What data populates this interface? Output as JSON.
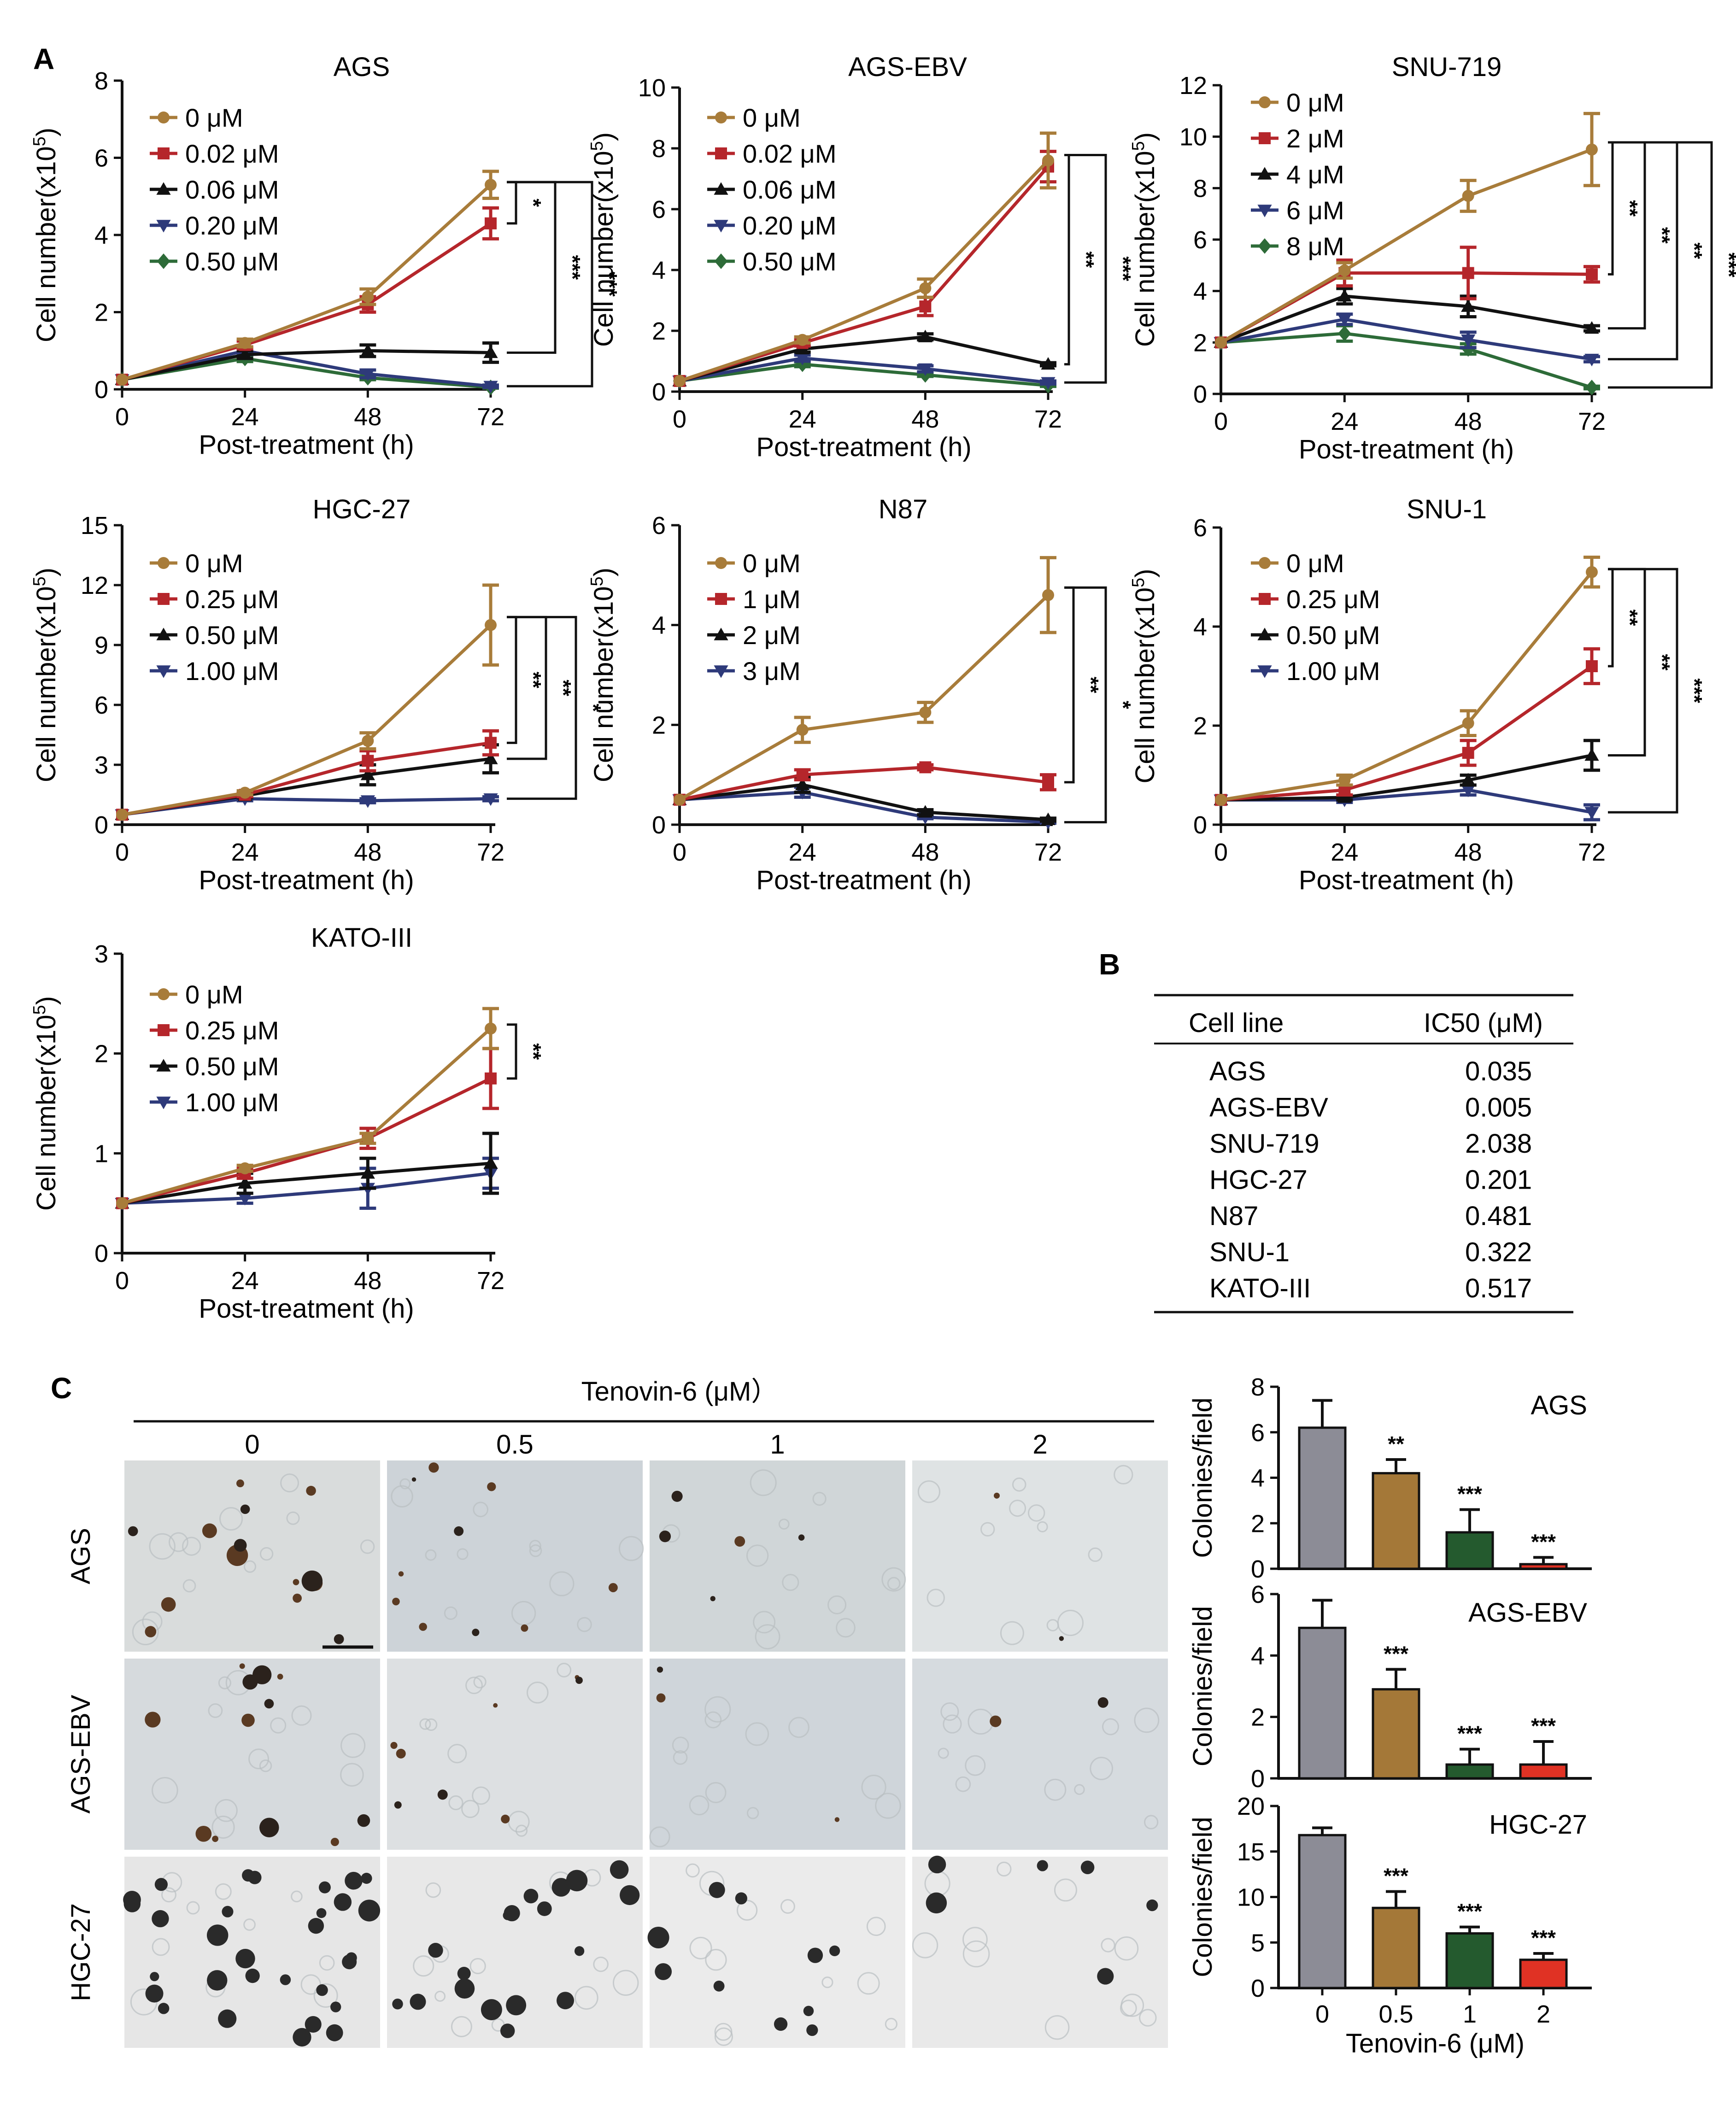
{
  "panel_labels": {
    "a": "A",
    "b": "B",
    "c": "C"
  },
  "colors": {
    "0": "#a87c3a",
    "1": "#b5262b",
    "2": "#111111",
    "3": "#2e3a7a",
    "4": "#2d6b38",
    "bar_0": "#8c8c96",
    "bar_1": "#a47838",
    "bar_2": "#245a2e",
    "bar_3": "#e03224"
  },
  "chart_data": [
    {
      "type": "line",
      "title": "AGS",
      "xlabel": "Post-treatment (h)",
      "ylabel": "Cell number(x10^5)",
      "ylabel_main": "Cell number(x10",
      "ylabel_sup": "5",
      "ylabel_close": ")",
      "x": [
        0,
        24,
        48,
        72
      ],
      "ylim": [
        0,
        8
      ],
      "yticks": [
        0,
        2,
        4,
        6,
        8
      ],
      "series": [
        {
          "name": "0 μM",
          "values": [
            0.25,
            1.2,
            2.4,
            5.3
          ],
          "err": [
            0,
            0.1,
            0.2,
            0.35
          ],
          "marker": "circle"
        },
        {
          "name": "0.02 μM",
          "values": [
            0.25,
            1.15,
            2.2,
            4.3
          ],
          "err": [
            0,
            0.1,
            0.2,
            0.4
          ],
          "marker": "square"
        },
        {
          "name": "0.06 μM",
          "values": [
            0.25,
            0.9,
            1.0,
            0.95
          ],
          "err": [
            0,
            0.1,
            0.15,
            0.25
          ],
          "marker": "triangle-up"
        },
        {
          "name": "0.20 μM",
          "values": [
            0.25,
            1.0,
            0.4,
            0.08
          ],
          "err": [
            0,
            0.1,
            0.1,
            0.03
          ],
          "marker": "triangle-down"
        },
        {
          "name": "0.50 μM",
          "values": [
            0.25,
            0.8,
            0.3,
            0.05
          ],
          "err": [
            0,
            0.08,
            0.05,
            0.02
          ],
          "marker": "diamond"
        }
      ],
      "significance": [
        "*",
        "***",
        "***"
      ]
    },
    {
      "type": "line",
      "title": "AGS-EBV",
      "xlabel": "Post-treatment (h)",
      "ylabel": "Cell number(x10^5)",
      "ylabel_main": "Cell number(x10",
      "ylabel_sup": "5",
      "ylabel_close": ")",
      "x": [
        0,
        24,
        48,
        72
      ],
      "ylim": [
        0,
        10
      ],
      "yticks": [
        0,
        2,
        4,
        6,
        8,
        10
      ],
      "series": [
        {
          "name": "0 μM",
          "values": [
            0.35,
            1.7,
            3.4,
            7.6
          ],
          "err": [
            0,
            0.1,
            0.3,
            0.9
          ],
          "marker": "circle"
        },
        {
          "name": "0.02 μM",
          "values": [
            0.35,
            1.6,
            2.8,
            7.4
          ],
          "err": [
            0,
            0.1,
            0.3,
            0.5
          ],
          "marker": "square"
        },
        {
          "name": "0.06 μM",
          "values": [
            0.35,
            1.4,
            1.8,
            0.9
          ],
          "err": [
            0,
            0.1,
            0.1,
            0.05
          ],
          "marker": "triangle-up"
        },
        {
          "name": "0.20 μM",
          "values": [
            0.35,
            1.1,
            0.75,
            0.3
          ],
          "err": [
            0,
            0.1,
            0.1,
            0.05
          ],
          "marker": "triangle-down"
        },
        {
          "name": "0.50 μM",
          "values": [
            0.35,
            0.9,
            0.55,
            0.2
          ],
          "err": [
            0,
            0.08,
            0.05,
            0.03
          ],
          "marker": "diamond"
        }
      ],
      "significance": [
        "**",
        "***"
      ]
    },
    {
      "type": "line",
      "title": "SNU-719",
      "xlabel": "Post-treatment (h)",
      "ylabel": "Cell number(x10^5)",
      "ylabel_main": "Cell number(x10",
      "ylabel_sup": "5",
      "ylabel_close": ")",
      "x": [
        0,
        24,
        48,
        72
      ],
      "ylim": [
        0,
        12
      ],
      "yticks": [
        0,
        2,
        4,
        6,
        8,
        10,
        12
      ],
      "series": [
        {
          "name": "0 μM",
          "values": [
            2.0,
            4.8,
            7.7,
            9.5
          ],
          "err": [
            0,
            0.3,
            0.6,
            1.4
          ],
          "marker": "circle"
        },
        {
          "name": "2 μM",
          "values": [
            2.0,
            4.7,
            4.7,
            4.65
          ],
          "err": [
            0,
            0.5,
            1.0,
            0.3
          ],
          "marker": "square"
        },
        {
          "name": "4 μM",
          "values": [
            2.0,
            3.8,
            3.4,
            2.55
          ],
          "err": [
            0,
            0.3,
            0.4,
            0.1
          ],
          "marker": "triangle-up"
        },
        {
          "name": "6 μM",
          "values": [
            2.0,
            2.9,
            2.1,
            1.35
          ],
          "err": [
            0,
            0.2,
            0.3,
            0.1
          ],
          "marker": "triangle-down"
        },
        {
          "name": "8 μM",
          "values": [
            2.0,
            2.35,
            1.75,
            0.25
          ],
          "err": [
            0,
            0.3,
            0.2,
            0.05
          ],
          "marker": "diamond"
        }
      ],
      "significance": [
        "**",
        "**",
        "**",
        "***"
      ]
    },
    {
      "type": "line",
      "title": "HGC-27",
      "xlabel": "Post-treatment (h)",
      "ylabel": "Cell number(x10^5)",
      "ylabel_main": "Cell number(x10",
      "ylabel_sup": "5",
      "ylabel_close": ")",
      "x": [
        0,
        24,
        48,
        72
      ],
      "ylim": [
        0,
        15
      ],
      "yticks": [
        0,
        3,
        6,
        9,
        12,
        15
      ],
      "series": [
        {
          "name": "0 μM",
          "values": [
            0.5,
            1.6,
            4.2,
            10.0
          ],
          "err": [
            0,
            0.1,
            0.4,
            2.0
          ],
          "marker": "circle"
        },
        {
          "name": "0.25 μM",
          "values": [
            0.5,
            1.5,
            3.2,
            4.1
          ],
          "err": [
            0,
            0.1,
            0.5,
            0.6
          ],
          "marker": "square"
        },
        {
          "name": "0.50 μM",
          "values": [
            0.5,
            1.45,
            2.5,
            3.3
          ],
          "err": [
            0,
            0.1,
            0.5,
            0.7
          ],
          "marker": "triangle-up"
        },
        {
          "name": "1.00 μM",
          "values": [
            0.5,
            1.3,
            1.2,
            1.3
          ],
          "err": [
            0,
            0.1,
            0.1,
            0.1
          ],
          "marker": "triangle-down"
        }
      ],
      "significance": [
        "**",
        "**",
        "*"
      ]
    },
    {
      "type": "line",
      "title": "N87",
      "xlabel": "Post-treatment (h)",
      "ylabel": "Cell number(x10^5)",
      "ylabel_main": "Cell number(x10",
      "ylabel_sup": "5",
      "ylabel_close": ")",
      "x": [
        0,
        24,
        48,
        72
      ],
      "ylim": [
        0,
        6
      ],
      "yticks": [
        0,
        2,
        4,
        6
      ],
      "series": [
        {
          "name": "0 μM",
          "values": [
            0.5,
            1.9,
            2.25,
            4.6
          ],
          "err": [
            0,
            0.25,
            0.2,
            0.75
          ],
          "marker": "circle"
        },
        {
          "name": "1 μM",
          "values": [
            0.5,
            1.0,
            1.15,
            0.85
          ],
          "err": [
            0,
            0.1,
            0.05,
            0.15
          ],
          "marker": "square"
        },
        {
          "name": "2 μM",
          "values": [
            0.5,
            0.8,
            0.25,
            0.1
          ],
          "err": [
            0,
            0.15,
            0.05,
            0.03
          ],
          "marker": "triangle-up"
        },
        {
          "name": "3 μM",
          "values": [
            0.5,
            0.65,
            0.15,
            0.05
          ],
          "err": [
            0,
            0.1,
            0.03,
            0.02
          ],
          "marker": "triangle-down"
        }
      ],
      "significance": [
        "**",
        "*"
      ]
    },
    {
      "type": "line",
      "title": "SNU-1",
      "xlabel": "Post-treatment (h)",
      "ylabel": "Cell number(x10^5)",
      "ylabel_main": "Cell number(x10",
      "ylabel_sup": "5",
      "ylabel_close": ")",
      "x": [
        0,
        24,
        48,
        72
      ],
      "ylim": [
        0,
        6
      ],
      "yticks": [
        0,
        2,
        4,
        6
      ],
      "series": [
        {
          "name": "0 μM",
          "values": [
            0.5,
            0.9,
            2.05,
            5.1
          ],
          "err": [
            0,
            0.1,
            0.25,
            0.3
          ],
          "marker": "circle"
        },
        {
          "name": "0.25 μM",
          "values": [
            0.5,
            0.7,
            1.45,
            3.2
          ],
          "err": [
            0,
            0.1,
            0.25,
            0.35
          ],
          "marker": "square"
        },
        {
          "name": "0.50 μM",
          "values": [
            0.5,
            0.55,
            0.9,
            1.4
          ],
          "err": [
            0,
            0.05,
            0.1,
            0.3
          ],
          "marker": "triangle-up"
        },
        {
          "name": "1.00 μM",
          "values": [
            0.5,
            0.5,
            0.7,
            0.25
          ],
          "err": [
            0,
            0.05,
            0.1,
            0.15
          ],
          "marker": "triangle-down"
        }
      ],
      "significance": [
        "**",
        "**",
        "***"
      ]
    },
    {
      "type": "line",
      "title": "KATO-III",
      "xlabel": "Post-treatment (h)",
      "ylabel": "Cell number(x10^5)",
      "ylabel_main": "Cell number(x10",
      "ylabel_sup": "5",
      "ylabel_close": ")",
      "x": [
        0,
        24,
        48,
        72
      ],
      "ylim": [
        0,
        3
      ],
      "yticks": [
        0,
        1,
        2,
        3
      ],
      "series": [
        {
          "name": "0 μM",
          "values": [
            0.5,
            0.85,
            1.15,
            2.25
          ],
          "err": [
            0,
            0.03,
            0.05,
            0.2
          ],
          "marker": "circle"
        },
        {
          "name": "0.25 μM",
          "values": [
            0.5,
            0.8,
            1.15,
            1.75
          ],
          "err": [
            0,
            0.05,
            0.1,
            0.3
          ],
          "marker": "square"
        },
        {
          "name": "0.50 μM",
          "values": [
            0.5,
            0.7,
            0.8,
            0.9
          ],
          "err": [
            0,
            0.1,
            0.15,
            0.3
          ],
          "marker": "triangle-up"
        },
        {
          "name": "1.00 μM",
          "values": [
            0.5,
            0.55,
            0.65,
            0.8
          ],
          "err": [
            0,
            0.05,
            0.2,
            0.15
          ],
          "marker": "triangle-down"
        }
      ],
      "significance": [
        "**"
      ]
    },
    {
      "type": "table",
      "columns": [
        "Cell line",
        "IC50 (μM)"
      ],
      "rows": [
        [
          "AGS",
          "0.035"
        ],
        [
          "AGS-EBV",
          "0.005"
        ],
        [
          "SNU-719",
          "2.038"
        ],
        [
          "HGC-27",
          "0.201"
        ],
        [
          "N87",
          "0.481"
        ],
        [
          "SNU-1",
          "0.322"
        ],
        [
          "KATO-III",
          "0.517"
        ]
      ]
    },
    {
      "type": "bar",
      "title": "AGS",
      "ylabel": "Colonies/field",
      "categories": [
        "0",
        "0.5",
        "1",
        "2"
      ],
      "values": [
        6.2,
        4.2,
        1.6,
        0.2
      ],
      "err": [
        1.2,
        0.6,
        1.0,
        0.3
      ],
      "ylim": [
        0,
        8
      ],
      "yticks": [
        0,
        2,
        4,
        6,
        8
      ],
      "significance": [
        "",
        "**",
        "***",
        "***"
      ]
    },
    {
      "type": "bar",
      "title": "AGS-EBV",
      "ylabel": "Colonies/field",
      "categories": [
        "0",
        "0.5",
        "1",
        "2"
      ],
      "values": [
        4.9,
        2.9,
        0.45,
        0.45
      ],
      "err": [
        0.9,
        0.65,
        0.5,
        0.75
      ],
      "ylim": [
        0,
        6
      ],
      "yticks": [
        0,
        2,
        4,
        6
      ],
      "significance": [
        "",
        "***",
        "***",
        "***"
      ]
    },
    {
      "type": "bar",
      "title": "HGC-27",
      "ylabel": "Colonies/field",
      "xlabel": "Tenovin-6 (μM)",
      "categories": [
        "0",
        "0.5",
        "1",
        "2"
      ],
      "values": [
        16.8,
        8.8,
        6.0,
        3.1
      ],
      "err": [
        0.8,
        1.8,
        0.7,
        0.7
      ],
      "ylim": [
        0,
        20
      ],
      "yticks": [
        0,
        5,
        10,
        15,
        20
      ],
      "significance": [
        "",
        "***",
        "***",
        "***"
      ]
    }
  ],
  "micrographs": {
    "header": "Tenovin-6 (μM）",
    "doses": [
      "0",
      "0.5",
      "1",
      "2"
    ],
    "rows": [
      "AGS",
      "AGS-EBV",
      "HGC-27"
    ]
  }
}
